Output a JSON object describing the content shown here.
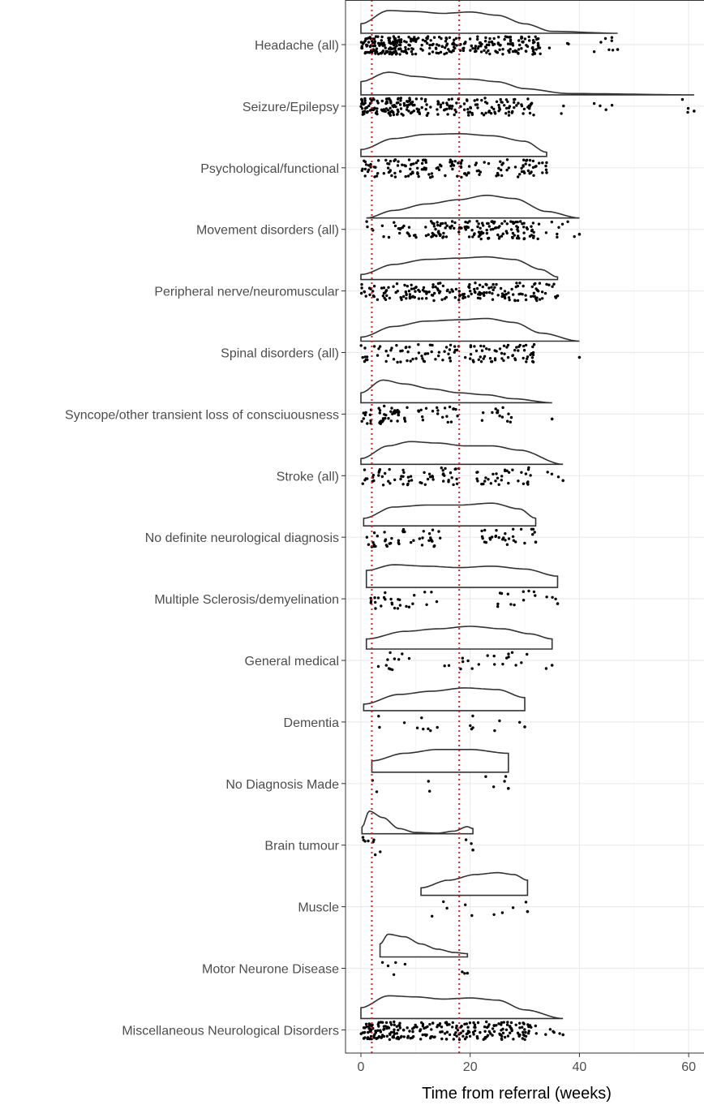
{
  "chart_data": {
    "type": "raincloud",
    "title": "",
    "xlabel": "Time from referral (weeks)",
    "ylabel": "",
    "xlim": [
      -2,
      62
    ],
    "x_ticks": [
      0,
      20,
      40,
      60
    ],
    "grid": true,
    "reference_lines": [
      {
        "x": 2,
        "style": "dotted",
        "color": "#e41a1c"
      },
      {
        "x": 18,
        "style": "dotted",
        "color": "#e41a1c"
      }
    ],
    "categories": [
      "Headache (all)",
      "Seizure/Epilepsy",
      "Psychological/functional",
      "Movement disorders (all)",
      "Peripheral nerve/neuromuscular",
      "Spinal disorders (all)",
      "Syncope/other transient loss of consciuousness",
      "Stroke (all)",
      "No definite neurological diagnosis",
      "Multiple Sclerosis/demyelination",
      "General medical",
      "Dementia",
      "No Diagnosis Made",
      "Brain tumour",
      "Muscle",
      "Motor Neurone Disease",
      "Miscellaneous Neurological Disorders"
    ],
    "series": [
      {
        "category": "Headache (all)",
        "min": 0,
        "max": 47,
        "n": 330,
        "clusters": [
          [
            0,
            9,
            0.42
          ],
          [
            9,
            19,
            0.22
          ],
          [
            19,
            33,
            0.33
          ],
          [
            33,
            47,
            0.03
          ]
        ],
        "density": [
          [
            0,
            0.02
          ],
          [
            5,
            0.048
          ],
          [
            10,
            0.046
          ],
          [
            15,
            0.042
          ],
          [
            20,
            0.045
          ],
          [
            25,
            0.038
          ],
          [
            30,
            0.02
          ],
          [
            35,
            0.004
          ],
          [
            47,
            0.0
          ]
        ]
      },
      {
        "category": "Seizure/Epilepsy",
        "min": 0,
        "max": 61,
        "n": 230,
        "clusters": [
          [
            0,
            10,
            0.46
          ],
          [
            10,
            20,
            0.22
          ],
          [
            20,
            32,
            0.28
          ],
          [
            32,
            61,
            0.04
          ]
        ],
        "density": [
          [
            0,
            0.03
          ],
          [
            5,
            0.052
          ],
          [
            10,
            0.042
          ],
          [
            15,
            0.036
          ],
          [
            20,
            0.036
          ],
          [
            25,
            0.03
          ],
          [
            30,
            0.014
          ],
          [
            38,
            0.003
          ],
          [
            61,
            0.0
          ]
        ]
      },
      {
        "category": "Psychological/functional",
        "min": 0,
        "max": 34,
        "n": 150,
        "clusters": [
          [
            0,
            10,
            0.33
          ],
          [
            10,
            20,
            0.34
          ],
          [
            20,
            34,
            0.33
          ]
        ],
        "density": [
          [
            0,
            0.01
          ],
          [
            6,
            0.026
          ],
          [
            12,
            0.032
          ],
          [
            18,
            0.033
          ],
          [
            24,
            0.03
          ],
          [
            30,
            0.022
          ],
          [
            34,
            0.006
          ]
        ]
      },
      {
        "category": "Movement disorders (all)",
        "min": 1,
        "max": 40,
        "n": 170,
        "clusters": [
          [
            1,
            12,
            0.14
          ],
          [
            12,
            20,
            0.3
          ],
          [
            20,
            32,
            0.5
          ],
          [
            32,
            40,
            0.06
          ]
        ],
        "density": [
          [
            1,
            0.0
          ],
          [
            6,
            0.014
          ],
          [
            12,
            0.026
          ],
          [
            18,
            0.034
          ],
          [
            23,
            0.042
          ],
          [
            28,
            0.036
          ],
          [
            34,
            0.012
          ],
          [
            40,
            0.0
          ]
        ]
      },
      {
        "category": "Peripheral nerve/neuromuscular",
        "min": 0,
        "max": 36,
        "n": 190,
        "clusters": [
          [
            0,
            8,
            0.18
          ],
          [
            8,
            20,
            0.38
          ],
          [
            20,
            36,
            0.44
          ]
        ],
        "density": [
          [
            0,
            0.008
          ],
          [
            6,
            0.024
          ],
          [
            12,
            0.032
          ],
          [
            18,
            0.034
          ],
          [
            23,
            0.036
          ],
          [
            28,
            0.032
          ],
          [
            33,
            0.016
          ],
          [
            36,
            0.004
          ]
        ]
      },
      {
        "category": "Spinal disorders (all)",
        "min": 0,
        "max": 40,
        "n": 120,
        "clusters": [
          [
            0,
            10,
            0.25
          ],
          [
            10,
            18,
            0.25
          ],
          [
            19,
            32,
            0.5
          ]
        ],
        "density": [
          [
            0,
            0.006
          ],
          [
            6,
            0.022
          ],
          [
            12,
            0.03
          ],
          [
            18,
            0.032
          ],
          [
            23,
            0.034
          ],
          [
            28,
            0.028
          ],
          [
            33,
            0.012
          ],
          [
            40,
            0.0
          ]
        ]
      },
      {
        "category": "Syncope/other transient loss of consciuousness",
        "min": 0,
        "max": 35,
        "n": 80,
        "clusters": [
          [
            0,
            7,
            0.52
          ],
          [
            7,
            18,
            0.3
          ],
          [
            22,
            28,
            0.18
          ]
        ],
        "density": [
          [
            0,
            0.02
          ],
          [
            4,
            0.046
          ],
          [
            8,
            0.038
          ],
          [
            13,
            0.028
          ],
          [
            18,
            0.02
          ],
          [
            23,
            0.016
          ],
          [
            28,
            0.008
          ],
          [
            35,
            0.0
          ]
        ]
      },
      {
        "category": "Stroke (all)",
        "min": 0,
        "max": 37,
        "n": 95,
        "clusters": [
          [
            0,
            9,
            0.32
          ],
          [
            9,
            18,
            0.3
          ],
          [
            21,
            31,
            0.34
          ],
          [
            31,
            37,
            0.04
          ]
        ],
        "density": [
          [
            0,
            0.008
          ],
          [
            5,
            0.026
          ],
          [
            9,
            0.032
          ],
          [
            14,
            0.03
          ],
          [
            19,
            0.026
          ],
          [
            24,
            0.026
          ],
          [
            29,
            0.02
          ],
          [
            37,
            0.0
          ]
        ]
      },
      {
        "category": "No definite neurological diagnosis",
        "min": 0.5,
        "max": 32,
        "n": 70,
        "clusters": [
          [
            0.5,
            8,
            0.34
          ],
          [
            8,
            16,
            0.24
          ],
          [
            22,
            32,
            0.42
          ]
        ],
        "density": [
          [
            0.5,
            0.008
          ],
          [
            6,
            0.02
          ],
          [
            12,
            0.022
          ],
          [
            18,
            0.022
          ],
          [
            24,
            0.024
          ],
          [
            29,
            0.018
          ],
          [
            32,
            0.008
          ]
        ]
      },
      {
        "category": "Multiple Sclerosis/demyelination",
        "min": 1,
        "max": 36,
        "n": 42,
        "clusters": [
          [
            1,
            10,
            0.55
          ],
          [
            10,
            15,
            0.1
          ],
          [
            23,
            36,
            0.35
          ]
        ],
        "density": [
          [
            1,
            0.012
          ],
          [
            6,
            0.016
          ],
          [
            12,
            0.015
          ],
          [
            18,
            0.014
          ],
          [
            24,
            0.015
          ],
          [
            30,
            0.013
          ],
          [
            36,
            0.008
          ]
        ]
      },
      {
        "category": "General medical",
        "min": 1,
        "max": 35,
        "n": 30,
        "clusters": [
          [
            1,
            9,
            0.35
          ],
          [
            13,
            20,
            0.2
          ],
          [
            20,
            35,
            0.45
          ]
        ],
        "density": [
          [
            1,
            0.008
          ],
          [
            8,
            0.014
          ],
          [
            14,
            0.016
          ],
          [
            20,
            0.018
          ],
          [
            26,
            0.016
          ],
          [
            31,
            0.012
          ],
          [
            35,
            0.008
          ]
        ]
      },
      {
        "category": "Dementia",
        "min": 0.5,
        "max": 30,
        "n": 16,
        "clusters": [
          [
            0.5,
            12,
            0.38
          ],
          [
            12,
            20,
            0.18
          ],
          [
            20,
            30,
            0.44
          ]
        ],
        "density": [
          [
            0.5,
            0.004
          ],
          [
            7,
            0.01
          ],
          [
            13,
            0.012
          ],
          [
            19,
            0.014
          ],
          [
            25,
            0.013
          ],
          [
            30,
            0.008
          ]
        ]
      },
      {
        "category": "No Diagnosis Made",
        "min": 2,
        "max": 27,
        "n": 8,
        "clusters": [
          [
            2,
            5,
            0.25
          ],
          [
            12,
            15,
            0.25
          ],
          [
            22,
            27,
            0.5
          ]
        ],
        "density": [
          [
            2,
            0.006
          ],
          [
            8,
            0.01
          ],
          [
            14,
            0.012
          ],
          [
            20,
            0.012
          ],
          [
            27,
            0.01
          ]
        ]
      },
      {
        "category": "Brain tumour",
        "min": 0.2,
        "max": 20.5,
        "n": 10,
        "clusters": [
          [
            0.2,
            3,
            0.7
          ],
          [
            3,
            5,
            0.1
          ],
          [
            19,
            20.5,
            0.2
          ]
        ],
        "density": [
          [
            0.2,
            0.02
          ],
          [
            1.5,
            0.07
          ],
          [
            4,
            0.05
          ],
          [
            7,
            0.016
          ],
          [
            10,
            0.004
          ],
          [
            14,
            0.002
          ],
          [
            17,
            0.008
          ],
          [
            19.5,
            0.022
          ],
          [
            20.5,
            0.016
          ]
        ]
      },
      {
        "category": "Muscle",
        "min": 11,
        "max": 30.5,
        "n": 9,
        "clusters": [
          [
            11,
            18,
            0.33
          ],
          [
            18,
            30.5,
            0.67
          ]
        ],
        "density": [
          [
            11,
            0.008
          ],
          [
            16,
            0.016
          ],
          [
            21,
            0.022
          ],
          [
            25,
            0.024
          ],
          [
            28,
            0.022
          ],
          [
            30.5,
            0.016
          ]
        ]
      },
      {
        "category": "Motor Neurone Disease",
        "min": 3.5,
        "max": 19.5,
        "n": 7,
        "clusters": [
          [
            3.5,
            8.5,
            0.72
          ],
          [
            14,
            19.5,
            0.28
          ]
        ],
        "density": [
          [
            3.5,
            0.04
          ],
          [
            5,
            0.07
          ],
          [
            8,
            0.062
          ],
          [
            11,
            0.04
          ],
          [
            14,
            0.024
          ],
          [
            17,
            0.014
          ],
          [
            19.5,
            0.01
          ]
        ]
      },
      {
        "category": "Miscellaneous Neurological Disorders",
        "min": 0,
        "max": 37,
        "n": 260,
        "clusters": [
          [
            0,
            10,
            0.38
          ],
          [
            10,
            20,
            0.27
          ],
          [
            20,
            31,
            0.32
          ],
          [
            31,
            37,
            0.03
          ]
        ],
        "density": [
          [
            0,
            0.02
          ],
          [
            5,
            0.042
          ],
          [
            10,
            0.04
          ],
          [
            15,
            0.036
          ],
          [
            20,
            0.038
          ],
          [
            25,
            0.034
          ],
          [
            30,
            0.016
          ],
          [
            37,
            0.0
          ]
        ]
      }
    ]
  }
}
